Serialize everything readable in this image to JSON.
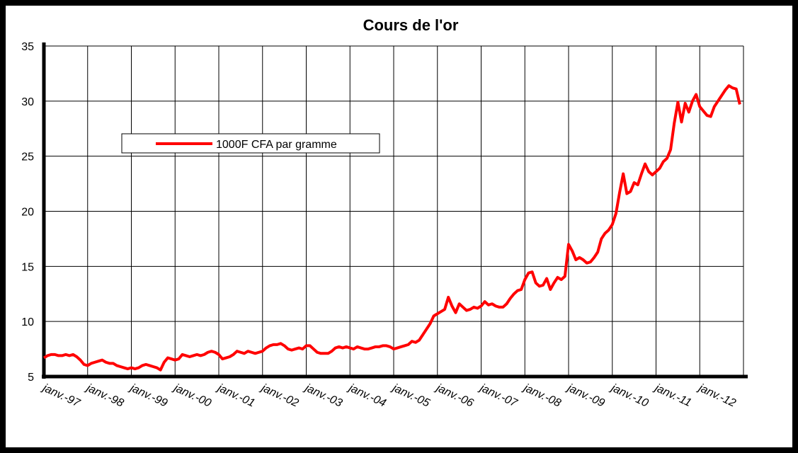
{
  "chart_data": {
    "type": "line",
    "title": "Cours de l'or",
    "categories": [
      "janv.-97",
      null,
      null,
      null,
      null,
      null,
      null,
      null,
      null,
      null,
      null,
      null,
      "janv.-98",
      null,
      null,
      null,
      null,
      null,
      null,
      null,
      null,
      null,
      null,
      null,
      "janv.-99",
      null,
      null,
      null,
      null,
      null,
      null,
      null,
      null,
      null,
      null,
      null,
      "janv.-00",
      null,
      null,
      null,
      null,
      null,
      null,
      null,
      null,
      null,
      null,
      null,
      "janv.-01",
      null,
      null,
      null,
      null,
      null,
      null,
      null,
      null,
      null,
      null,
      null,
      "janv.-02",
      null,
      null,
      null,
      null,
      null,
      null,
      null,
      null,
      null,
      null,
      null,
      "janv.-03",
      null,
      null,
      null,
      null,
      null,
      null,
      null,
      null,
      null,
      null,
      null,
      "janv.-04",
      null,
      null,
      null,
      null,
      null,
      null,
      null,
      null,
      null,
      null,
      null,
      "janv.-05",
      null,
      null,
      null,
      null,
      null,
      null,
      null,
      null,
      null,
      null,
      null,
      "janv.-06",
      null,
      null,
      null,
      null,
      null,
      null,
      null,
      null,
      null,
      null,
      null,
      "janv.-07",
      null,
      null,
      null,
      null,
      null,
      null,
      null,
      null,
      null,
      null,
      null,
      "janv.-08",
      null,
      null,
      null,
      null,
      null,
      null,
      null,
      null,
      null,
      null,
      null,
      "janv.-09",
      null,
      null,
      null,
      null,
      null,
      null,
      null,
      null,
      null,
      null,
      null,
      "janv.-10",
      null,
      null,
      null,
      null,
      null,
      null,
      null,
      null,
      null,
      null,
      null,
      "janv.-11",
      null,
      null,
      null,
      null,
      null,
      null,
      null,
      null,
      null,
      null,
      null,
      "janv.-12",
      null,
      null,
      null,
      null,
      null,
      null,
      null,
      null,
      null,
      null,
      null
    ],
    "series": [
      {
        "name": "1000F CFA par gramme",
        "color": "#ff0000",
        "values": [
          6.7,
          6.9,
          7.0,
          7.0,
          6.9,
          6.9,
          7.0,
          6.9,
          7.0,
          6.8,
          6.5,
          6.1,
          6.0,
          6.2,
          6.3,
          6.4,
          6.5,
          6.3,
          6.2,
          6.2,
          6.0,
          5.9,
          5.8,
          5.7,
          5.8,
          5.7,
          5.8,
          6.0,
          6.1,
          6.0,
          5.9,
          5.8,
          5.6,
          6.3,
          6.7,
          6.6,
          6.5,
          6.6,
          7.0,
          6.9,
          6.8,
          6.9,
          7.0,
          6.9,
          7.0,
          7.2,
          7.3,
          7.2,
          7.0,
          6.6,
          6.7,
          6.8,
          7.0,
          7.3,
          7.2,
          7.1,
          7.3,
          7.2,
          7.1,
          7.2,
          7.3,
          7.6,
          7.8,
          7.9,
          7.9,
          8.0,
          7.8,
          7.5,
          7.4,
          7.5,
          7.6,
          7.5,
          7.8,
          7.8,
          7.5,
          7.2,
          7.1,
          7.1,
          7.1,
          7.3,
          7.6,
          7.7,
          7.6,
          7.7,
          7.6,
          7.5,
          7.7,
          7.6,
          7.5,
          7.5,
          7.6,
          7.7,
          7.7,
          7.8,
          7.8,
          7.7,
          7.5,
          7.6,
          7.7,
          7.8,
          7.9,
          8.2,
          8.1,
          8.3,
          8.8,
          9.3,
          9.8,
          10.5,
          10.7,
          10.9,
          11.1,
          12.2,
          11.4,
          10.8,
          11.6,
          11.3,
          11.0,
          11.1,
          11.3,
          11.2,
          11.4,
          11.8,
          11.5,
          11.6,
          11.4,
          11.3,
          11.3,
          11.6,
          12.1,
          12.5,
          12.8,
          12.9,
          13.8,
          14.4,
          14.5,
          13.5,
          13.2,
          13.3,
          13.9,
          12.9,
          13.5,
          14.0,
          13.8,
          14.1,
          17.0,
          16.4,
          15.6,
          15.8,
          15.6,
          15.3,
          15.4,
          15.8,
          16.3,
          17.5,
          18.0,
          18.3,
          18.8,
          19.8,
          21.7,
          23.4,
          21.6,
          21.8,
          22.6,
          22.4,
          23.4,
          24.3,
          23.6,
          23.3,
          23.6,
          23.9,
          24.5,
          24.8,
          25.6,
          28.0,
          29.9,
          28.1,
          29.8,
          29.0,
          30.0,
          30.6,
          29.5,
          29.1,
          28.7,
          28.6,
          29.5,
          30.0,
          30.5,
          31.0,
          31.4,
          31.2,
          31.1,
          29.7
        ]
      }
    ],
    "ylim": [
      5,
      35
    ],
    "yticks": [
      5,
      10,
      15,
      20,
      25,
      30,
      35
    ],
    "grid": true
  }
}
